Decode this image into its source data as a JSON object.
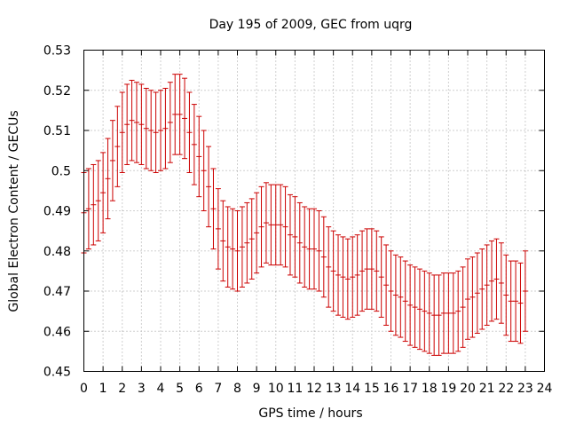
{
  "chart_data": {
    "type": "errorbar",
    "title": "Day 195 of 2009, GEC from uqrg",
    "xlabel": "GPS time / hours",
    "ylabel": "Global Electron Content / GECUs",
    "xlim": [
      0,
      24
    ],
    "ylim": [
      0.45,
      0.53
    ],
    "x_ticks": [
      "0",
      "1",
      "2",
      "3",
      "4",
      "5",
      "6",
      "7",
      "8",
      "9",
      "10",
      "11",
      "12",
      "13",
      "14",
      "15",
      "16",
      "17",
      "18",
      "19",
      "20",
      "21",
      "22",
      "23",
      "24"
    ],
    "y_ticks": [
      "0.45",
      "0.46",
      "0.47",
      "0.48",
      "0.49",
      "0.5",
      "0.51",
      "0.52",
      "0.53"
    ],
    "grid": true,
    "error": 0.01,
    "color": "#cc0000",
    "series": [
      {
        "name": "GEC",
        "x_step_hours": 0.25,
        "values": [
          0.4895,
          0.4905,
          0.4915,
          0.4925,
          0.4945,
          0.498,
          0.5025,
          0.506,
          0.5095,
          0.5115,
          0.5125,
          0.512,
          0.5115,
          0.5105,
          0.51,
          0.5095,
          0.51,
          0.5105,
          0.512,
          0.514,
          0.514,
          0.513,
          0.5095,
          0.5065,
          0.5035,
          0.5,
          0.496,
          0.4905,
          0.4855,
          0.4825,
          0.481,
          0.4805,
          0.48,
          0.481,
          0.482,
          0.483,
          0.4845,
          0.486,
          0.487,
          0.4865,
          0.4865,
          0.4865,
          0.486,
          0.484,
          0.4835,
          0.482,
          0.481,
          0.4805,
          0.4805,
          0.48,
          0.4785,
          0.476,
          0.475,
          0.474,
          0.4735,
          0.473,
          0.4735,
          0.474,
          0.475,
          0.4755,
          0.4755,
          0.475,
          0.4735,
          0.4715,
          0.47,
          0.469,
          0.4685,
          0.4675,
          0.4665,
          0.466,
          0.4655,
          0.465,
          0.4645,
          0.464,
          0.464,
          0.4645,
          0.4645,
          0.4645,
          0.465,
          0.466,
          0.468,
          0.4685,
          0.4695,
          0.4705,
          0.4715,
          0.4725,
          0.473,
          0.472,
          0.469,
          0.4675,
          0.4675,
          0.467,
          0.47
        ]
      }
    ]
  }
}
